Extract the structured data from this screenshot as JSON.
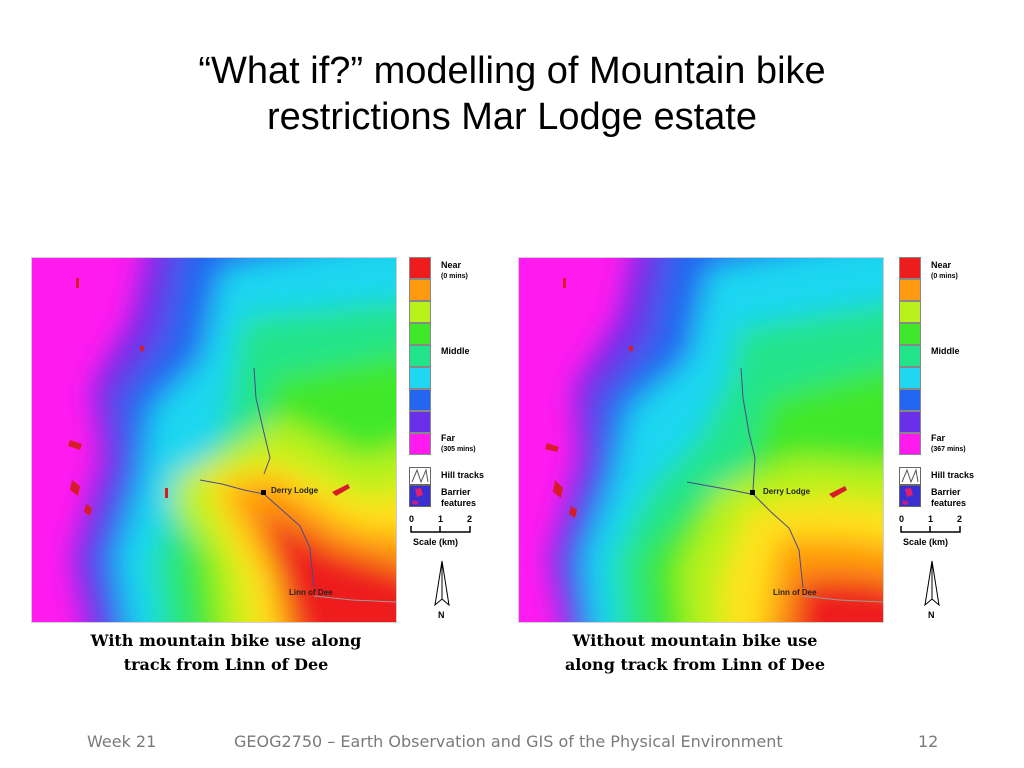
{
  "slide": {
    "title_line1": "“What if?” modelling of Mountain bike",
    "title_line2": "restrictions Mar Lodge estate"
  },
  "maps": [
    {
      "caption_line1": "With mountain bike use along",
      "caption_line2": "track from Linn of Dee",
      "place_labels": {
        "derry_lodge": "Derry Lodge",
        "linn_of_dee": "Linn of Dee"
      },
      "legend": {
        "near": "Near",
        "near_sub": "(0 mins)",
        "middle": "Middle",
        "far": "Far",
        "far_sub": "(305 mins)",
        "hill_tracks": "Hill tracks",
        "barrier_line1": "Barrier",
        "barrier_line2": "features",
        "scale_ticks": [
          "0",
          "1",
          "2"
        ],
        "scale_label": "Scale (km)",
        "north": "N"
      }
    },
    {
      "caption_line1": "Without mountain bike use",
      "caption_line2": "along track from Linn of Dee",
      "place_labels": {
        "derry_lodge": "Derry Lodge",
        "linn_of_dee": "Linn of Dee"
      },
      "legend": {
        "near": "Near",
        "near_sub": "(0 mins)",
        "middle": "Middle",
        "far": "Far",
        "far_sub": "(367 mins)",
        "hill_tracks": "Hill tracks",
        "barrier_line1": "Barrier",
        "barrier_line2": "features",
        "scale_ticks": [
          "0",
          "1",
          "2"
        ],
        "scale_label": "Scale (km)",
        "north": "N"
      }
    }
  ],
  "legend_colors": [
    "#ee1c1c",
    "#ff9a10",
    "#b9f21a",
    "#3fe82a",
    "#22e48a",
    "#1fd7f0",
    "#2366f0",
    "#6a2fe8",
    "#ff1bf0"
  ],
  "footer": {
    "left": "Week 21",
    "center": "GEOG2750 – Earth Observation and GIS of the Physical Environment",
    "right": "12"
  }
}
